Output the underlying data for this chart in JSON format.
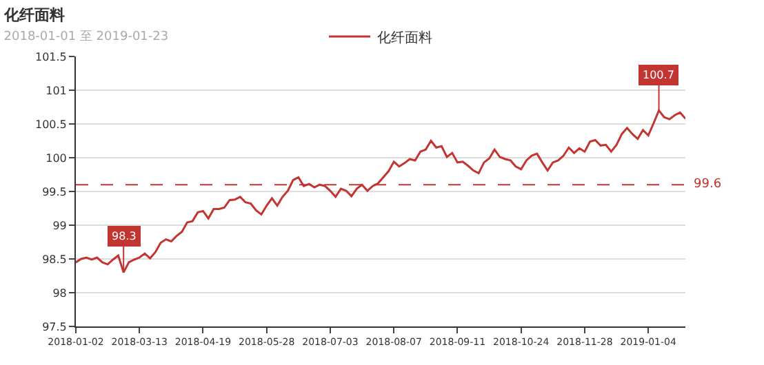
{
  "chart_data": {
    "type": "line",
    "title": "化纤面料",
    "subtitle": "2018-01-01 至 2019-01-23",
    "categories": [
      "2018-01-02",
      null,
      null,
      null,
      null,
      null,
      null,
      null,
      null,
      null,
      null,
      null,
      "2018-03-13",
      null,
      null,
      null,
      null,
      null,
      null,
      null,
      null,
      null,
      null,
      null,
      "2018-04-19",
      null,
      null,
      null,
      null,
      null,
      null,
      null,
      null,
      null,
      null,
      null,
      "2018-05-28",
      null,
      null,
      null,
      null,
      null,
      null,
      null,
      null,
      null,
      null,
      null,
      "2018-07-03",
      null,
      null,
      null,
      null,
      null,
      null,
      null,
      null,
      null,
      null,
      null,
      "2018-08-07",
      null,
      null,
      null,
      null,
      null,
      null,
      null,
      null,
      null,
      null,
      null,
      "2018-09-11",
      null,
      null,
      null,
      null,
      null,
      null,
      null,
      null,
      null,
      null,
      null,
      "2018-10-24",
      null,
      null,
      null,
      null,
      null,
      null,
      null,
      null,
      null,
      null,
      null,
      "2018-11-28",
      null,
      null,
      null,
      null,
      null,
      null,
      null,
      null,
      null,
      null,
      null,
      "2019-01-04",
      null,
      null,
      null,
      null,
      null,
      null,
      null
    ],
    "series": [
      {
        "name": "化纤面料",
        "color": "#c23531",
        "values": [
          98.45,
          98.5,
          98.52,
          98.49,
          98.52,
          98.45,
          98.42,
          98.49,
          98.55,
          98.3,
          98.45,
          98.49,
          98.52,
          98.58,
          98.51,
          98.6,
          98.74,
          98.79,
          98.76,
          98.84,
          98.9,
          99.04,
          99.06,
          99.19,
          99.21,
          99.1,
          99.24,
          99.24,
          99.26,
          99.37,
          99.38,
          99.42,
          99.34,
          99.32,
          99.22,
          99.16,
          99.29,
          99.4,
          99.29,
          99.42,
          99.51,
          99.67,
          99.71,
          99.58,
          99.61,
          99.56,
          99.6,
          99.58,
          99.51,
          99.42,
          99.54,
          99.51,
          99.43,
          99.54,
          99.6,
          99.51,
          99.58,
          99.62,
          99.71,
          99.8,
          99.94,
          99.87,
          99.92,
          99.98,
          99.96,
          100.09,
          100.12,
          100.25,
          100.15,
          100.17,
          100.01,
          100.07,
          99.93,
          99.94,
          99.88,
          99.81,
          99.77,
          99.93,
          99.99,
          100.12,
          100.01,
          99.98,
          99.96,
          99.87,
          99.83,
          99.96,
          100.03,
          100.06,
          99.93,
          99.81,
          99.93,
          99.96,
          100.03,
          100.15,
          100.07,
          100.14,
          100.09,
          100.24,
          100.26,
          100.18,
          100.19,
          100.09,
          100.19,
          100.35,
          100.44,
          100.35,
          100.28,
          100.41,
          100.33,
          100.51,
          100.7,
          100.6,
          100.57,
          100.63,
          100.67,
          100.58
        ]
      }
    ],
    "annotations": [
      {
        "text": "98.3",
        "y": 98.3
      },
      {
        "text": "100.7",
        "y": 100.7
      }
    ],
    "ref_lines": [
      {
        "axis": "y",
        "value": 99.6,
        "label": "99.6",
        "color": "#c23531",
        "line_style": "dashed"
      }
    ],
    "ylim": [
      97.5,
      101.5
    ],
    "yticks": [
      97.5,
      98,
      98.5,
      99,
      99.5,
      100,
      100.5,
      101,
      101.5
    ],
    "grid": "y",
    "legend": "top",
    "line_style": "solid"
  }
}
